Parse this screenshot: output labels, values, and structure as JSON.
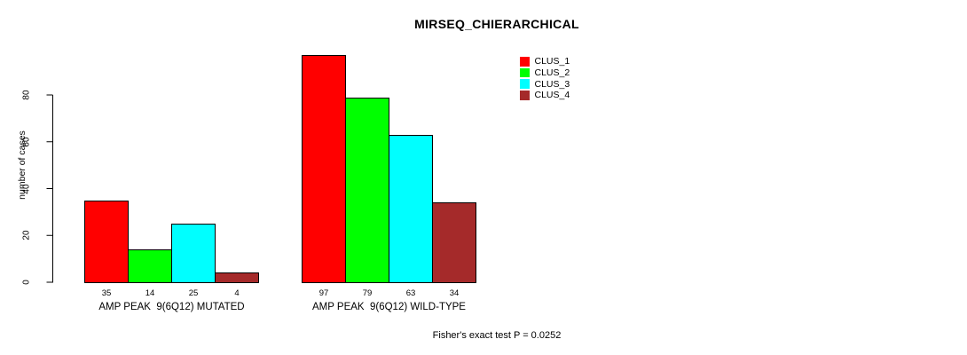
{
  "chart_data": {
    "type": "bar",
    "title": "MIRSEQ_CHIERARCHICAL",
    "ylabel": "number of cases",
    "xlabel": "",
    "yticks": [
      0,
      20,
      40,
      60,
      80
    ],
    "ylim": [
      0,
      100
    ],
    "grid": false,
    "legend_position": "top-right",
    "bar_value_labels_shown": true,
    "categories": [
      "AMP PEAK  9(6Q12) MUTATED",
      "AMP PEAK  9(6Q12) WILD-TYPE"
    ],
    "series": [
      {
        "name": "CLUS_1",
        "color": "#ff0000",
        "values": [
          35,
          97
        ]
      },
      {
        "name": "CLUS_2",
        "color": "#00ff00",
        "values": [
          14,
          79
        ]
      },
      {
        "name": "CLUS_3",
        "color": "#00ffff",
        "values": [
          25,
          63
        ]
      },
      {
        "name": "CLUS_4",
        "color": "#a52a2a",
        "values": [
          4,
          34
        ]
      }
    ],
    "footnote": "Fisher's exact test P = 0.0252"
  },
  "colors": {
    "axis": "#000000",
    "bar_border": "#000000",
    "background": "#ffffff"
  }
}
